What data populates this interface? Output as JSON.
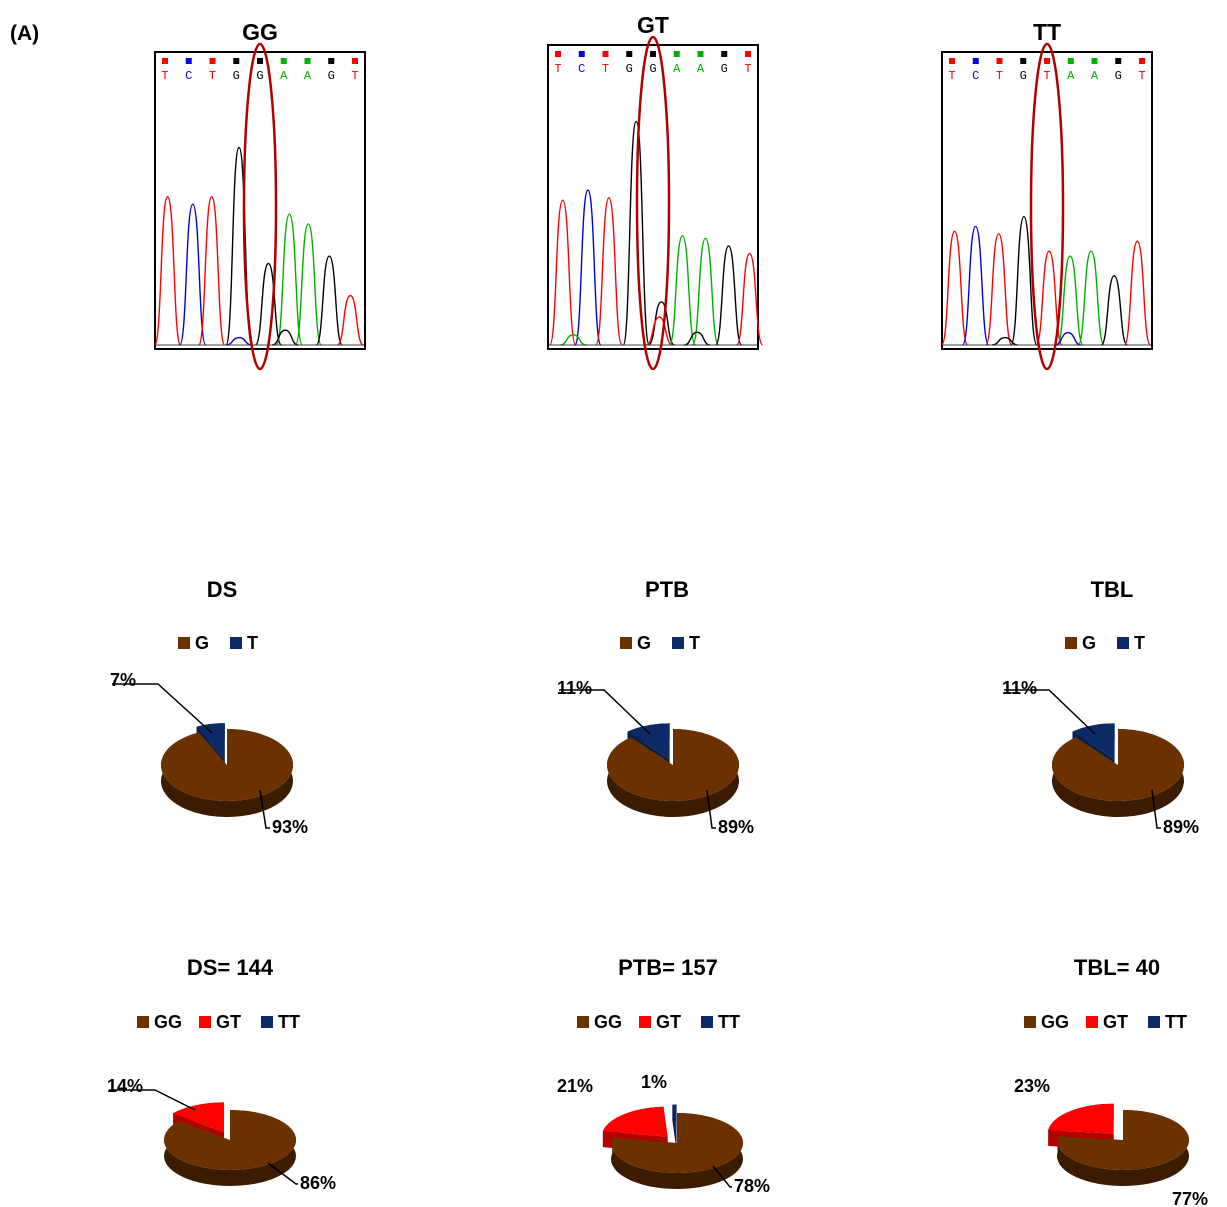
{
  "panel_label": "(A)",
  "colors": {
    "G": "#6b3200",
    "T": "#0b2a66",
    "GG": "#6b3200",
    "GT": "#ff0000",
    "TT": "#0b2a66",
    "trace_A": "#00b000",
    "trace_C": "#0000e0",
    "trace_G": "#000000",
    "trace_T": "#ff0000",
    "highlight_ellipse": "#b00000"
  },
  "chromatograms": [
    {
      "genotype": "GG",
      "bases": [
        "T",
        "C",
        "T",
        "G",
        "G",
        "A",
        "A",
        "G",
        "T"
      ],
      "highlighted_base_index": 4
    },
    {
      "genotype": "GT",
      "bases": [
        "T",
        "C",
        "T",
        "G",
        "G",
        "A",
        "A",
        "G",
        "T"
      ],
      "highlighted_base_index": 4
    },
    {
      "genotype": "TT",
      "bases": [
        "T",
        "C",
        "T",
        "G",
        "T",
        "A",
        "A",
        "G",
        "T"
      ],
      "highlighted_base_index": 4
    }
  ],
  "chart_data": [
    {
      "type": "pie",
      "title": "DS",
      "legend": [
        "G",
        "T"
      ],
      "categories": [
        "G",
        "T"
      ],
      "values": [
        93,
        7
      ],
      "labels": [
        "93%",
        "7%"
      ]
    },
    {
      "type": "pie",
      "title": "PTB",
      "legend": [
        "G",
        "T"
      ],
      "categories": [
        "G",
        "T"
      ],
      "values": [
        89,
        11
      ],
      "labels": [
        "89%",
        "11%"
      ]
    },
    {
      "type": "pie",
      "title": "TBL",
      "legend": [
        "G",
        "T"
      ],
      "categories": [
        "G",
        "T"
      ],
      "values": [
        89,
        11
      ],
      "labels": [
        "89%",
        "11%"
      ]
    },
    {
      "type": "pie",
      "title": "DS= 144",
      "legend": [
        "GG",
        "GT",
        "TT"
      ],
      "categories": [
        "GG",
        "GT",
        "TT"
      ],
      "values": [
        86,
        14,
        0
      ],
      "labels": [
        "86%",
        "14%",
        ""
      ]
    },
    {
      "type": "pie",
      "title": "PTB= 157",
      "legend": [
        "GG",
        "GT",
        "TT"
      ],
      "categories": [
        "GG",
        "GT",
        "TT"
      ],
      "values": [
        78,
        21,
        1
      ],
      "labels": [
        "78%",
        "21%",
        "1%"
      ]
    },
    {
      "type": "pie",
      "title": "TBL= 40",
      "legend": [
        "GG",
        "GT",
        "TT"
      ],
      "categories": [
        "GG",
        "GT",
        "TT"
      ],
      "values": [
        77,
        23,
        0
      ],
      "labels": [
        "77%",
        "23%",
        ""
      ]
    }
  ]
}
